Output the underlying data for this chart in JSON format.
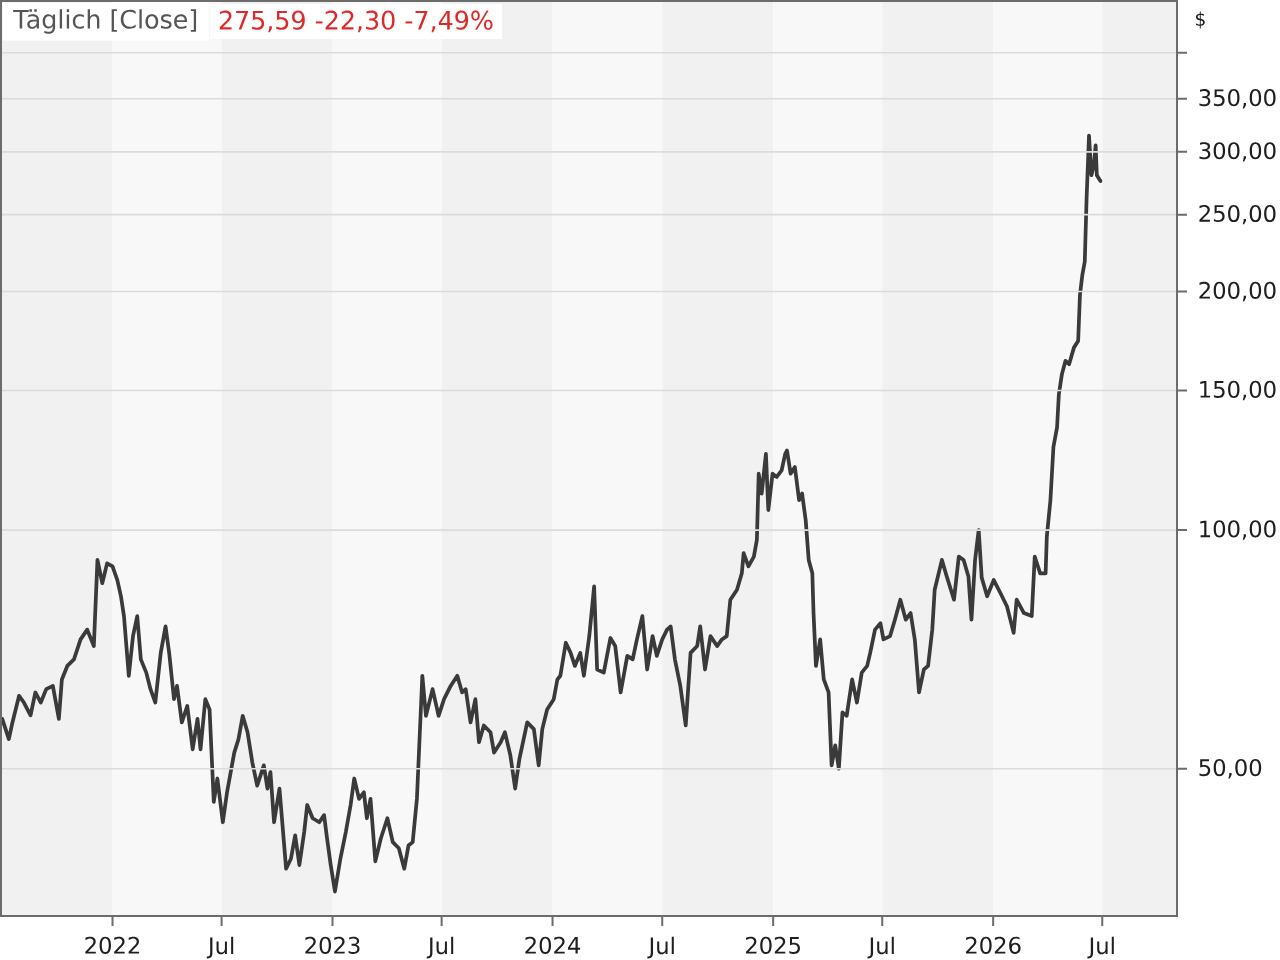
{
  "chart_data": {
    "type": "line",
    "title": "Täglich [Close]",
    "subtitle": "275,59 -22,30 -7,49%",
    "ylabel": "$",
    "x": [
      "2021-07-02",
      "2021-07-13",
      "2021-07-19",
      "2021-07-30",
      "2021-08-07",
      "2021-08-18",
      "2021-08-26",
      "2021-09-04",
      "2021-09-13",
      "2021-09-24",
      "2021-10-04",
      "2021-10-09",
      "2021-10-18",
      "2021-10-29",
      "2021-11-09",
      "2021-11-20",
      "2021-12-01",
      "2021-12-07",
      "2021-12-15",
      "2021-12-23",
      "2022-01-01",
      "2022-01-09",
      "2022-01-15",
      "2022-01-20",
      "2022-01-28",
      "2022-02-04",
      "2022-02-11",
      "2022-02-17",
      "2022-02-26",
      "2022-03-05",
      "2022-03-13",
      "2022-03-22",
      "2022-03-30",
      "2022-04-05",
      "2022-04-13",
      "2022-04-18",
      "2022-04-26",
      "2022-05-05",
      "2022-05-14",
      "2022-05-22",
      "2022-05-27",
      "2022-06-04",
      "2022-06-11",
      "2022-06-18",
      "2022-06-24",
      "2022-07-03",
      "2022-07-10",
      "2022-07-22",
      "2022-07-29",
      "2022-08-05",
      "2022-08-13",
      "2022-08-21",
      "2022-08-29",
      "2022-09-09",
      "2022-09-15",
      "2022-09-20",
      "2022-09-26",
      "2022-10-05",
      "2022-10-16",
      "2022-10-24",
      "2022-10-31",
      "2022-11-07",
      "2022-11-15",
      "2022-11-20",
      "2022-11-29",
      "2022-12-10",
      "2022-12-18",
      "2022-12-23",
      "2022-12-29",
      "2023-01-05",
      "2023-01-14",
      "2023-01-23",
      "2023-01-31",
      "2023-02-06",
      "2023-02-14",
      "2023-02-22",
      "2023-02-27",
      "2023-03-05",
      "2023-03-13",
      "2023-03-22",
      "2023-04-02",
      "2023-04-11",
      "2023-04-21",
      "2023-04-30",
      "2023-05-07",
      "2023-05-14",
      "2023-05-21",
      "2023-05-30",
      "2023-06-05",
      "2023-06-16",
      "2023-06-26",
      "2023-07-05",
      "2023-07-16",
      "2023-07-27",
      "2023-08-04",
      "2023-08-10",
      "2023-08-18",
      "2023-08-26",
      "2023-09-01",
      "2023-09-09",
      "2023-09-20",
      "2023-09-26",
      "2023-10-07",
      "2023-10-14",
      "2023-10-23",
      "2023-10-31",
      "2023-11-07",
      "2023-11-20",
      "2023-12-01",
      "2023-12-09",
      "2023-12-15",
      "2023-12-23",
      "2024-01-03",
      "2024-01-09",
      "2024-01-14",
      "2024-01-23",
      "2024-01-31",
      "2024-02-07",
      "2024-02-16",
      "2024-02-22",
      "2024-03-02",
      "2024-03-10",
      "2024-03-15",
      "2024-03-26",
      "2024-04-06",
      "2024-04-14",
      "2024-04-23",
      "2024-05-04",
      "2024-05-13",
      "2024-05-20",
      "2024-05-29",
      "2024-06-06",
      "2024-06-15",
      "2024-06-22",
      "2024-07-01",
      "2024-07-09",
      "2024-07-15",
      "2024-07-22",
      "2024-07-31",
      "2024-08-09",
      "2024-08-17",
      "2024-08-28",
      "2024-09-02",
      "2024-09-10",
      "2024-09-19",
      "2024-09-30",
      "2024-10-08",
      "2024-10-16",
      "2024-10-22",
      "2024-11-02",
      "2024-11-10",
      "2024-11-13",
      "2024-11-21",
      "2024-11-30",
      "2024-12-05",
      "2024-12-08",
      "2024-12-13",
      "2024-12-20",
      "2024-12-24",
      "2024-12-31",
      "2025-01-07",
      "2025-01-15",
      "2025-01-21",
      "2025-01-24",
      "2025-01-30",
      "2025-02-06",
      "2025-02-13",
      "2025-02-18",
      "2025-02-24",
      "2025-03-01",
      "2025-03-07",
      "2025-03-09",
      "2025-03-13",
      "2025-03-20",
      "2025-03-26",
      "2025-04-03",
      "2025-04-08",
      "2025-04-14",
      "2025-04-20",
      "2025-04-26",
      "2025-05-03",
      "2025-05-12",
      "2025-05-20",
      "2025-05-28",
      "2025-06-06",
      "2025-06-11",
      "2025-06-19",
      "2025-06-28",
      "2025-07-03",
      "2025-07-14",
      "2025-07-22",
      "2025-07-31",
      "2025-08-09",
      "2025-08-17",
      "2025-08-24",
      "2025-08-31",
      "2025-09-08",
      "2025-09-15",
      "2025-09-22",
      "2025-09-26",
      "2025-10-08",
      "2025-10-16",
      "2025-10-28",
      "2025-11-05",
      "2025-11-13",
      "2025-11-21",
      "2025-11-26",
      "2025-12-02",
      "2025-12-08",
      "2025-12-13",
      "2025-12-22",
      "2026-01-02",
      "2026-01-13",
      "2026-01-24",
      "2026-02-04",
      "2026-02-09",
      "2026-02-21",
      "2026-03-06",
      "2026-03-11",
      "2026-03-20",
      "2026-03-29",
      "2026-03-31",
      "2026-04-06",
      "2026-04-11",
      "2026-04-17",
      "2026-04-20",
      "2026-04-25",
      "2026-05-01",
      "2026-05-07",
      "2026-05-15",
      "2026-05-22",
      "2026-05-25",
      "2026-05-29",
      "2026-06-02",
      "2026-06-05",
      "2026-06-09",
      "2026-06-13",
      "2026-06-17",
      "2026-06-20",
      "2026-06-22",
      "2026-06-28"
    ],
    "values": [
      57.8,
      54.5,
      57.2,
      61.8,
      60.6,
      58.4,
      62.4,
      60.6,
      63.0,
      63.6,
      57.8,
      64.8,
      67.4,
      68.7,
      72.8,
      74.9,
      71.4,
      91.7,
      85.7,
      90.8,
      90.0,
      86.5,
      82.5,
      77.9,
      65.5,
      73.5,
      77.9,
      68.7,
      66.1,
      63.0,
      60.6,
      70.0,
      75.6,
      70.0,
      61.2,
      63.6,
      57.2,
      60.0,
      52.9,
      57.8,
      52.9,
      61.2,
      59.4,
      45.4,
      48.6,
      42.8,
      46.7,
      52.4,
      54.5,
      58.3,
      55.6,
      50.9,
      47.6,
      50.5,
      47.2,
      49.5,
      42.8,
      47.2,
      37.4,
      38.5,
      41.2,
      37.8,
      41.6,
      45.0,
      43.3,
      42.8,
      43.7,
      40.8,
      37.8,
      35.0,
      38.5,
      41.6,
      45.0,
      48.6,
      45.8,
      46.7,
      43.3,
      45.8,
      38.2,
      40.8,
      43.3,
      40.4,
      39.7,
      37.4,
      40.0,
      40.4,
      45.8,
      65.5,
      58.3,
      63.0,
      58.3,
      61.2,
      63.6,
      65.5,
      62.4,
      63.0,
      57.2,
      61.2,
      54.0,
      56.7,
      55.6,
      52.4,
      54.0,
      55.6,
      52.0,
      47.2,
      51.4,
      57.2,
      56.1,
      50.5,
      56.1,
      59.4,
      61.2,
      64.8,
      65.5,
      72.1,
      70.0,
      67.4,
      70.0,
      65.5,
      73.5,
      84.9,
      66.7,
      66.1,
      73.1,
      71.4,
      62.4,
      69.4,
      68.7,
      72.8,
      77.9,
      66.7,
      73.5,
      69.4,
      72.8,
      74.9,
      75.6,
      68.7,
      63.6,
      56.7,
      70.0,
      71.4,
      75.6,
      66.7,
      73.5,
      71.4,
      72.8,
      73.5,
      81.7,
      84.1,
      88.2,
      93.5,
      90.0,
      92.6,
      97.2,
      117.8,
      111.2,
      124.8,
      106.0,
      117.8,
      116.7,
      118.9,
      124.8,
      126.0,
      117.8,
      120.1,
      109.1,
      111.2,
      102.9,
      91.7,
      88.2,
      78.6,
      67.4,
      72.8,
      64.8,
      62.4,
      50.5,
      53.5,
      50.0,
      58.9,
      58.3,
      64.8,
      60.6,
      66.1,
      67.4,
      70.0,
      74.9,
      76.3,
      72.8,
      73.5,
      77.1,
      81.7,
      77.1,
      78.6,
      72.8,
      62.4,
      66.7,
      67.4,
      74.9,
      84.1,
      91.7,
      87.4,
      81.7,
      92.6,
      91.7,
      87.4,
      77.1,
      91.7,
      100.0,
      87.1,
      82.5,
      86.5,
      83.3,
      80.1,
      74.2,
      81.7,
      78.6,
      77.9,
      92.6,
      88.2,
      88.2,
      98.1,
      109.1,
      127.3,
      134.8,
      148.4,
      157.2,
      163.5,
      161.9,
      169.9,
      173.2,
      198.1,
      209.9,
      218.2,
      262.1,
      314.6,
      280.3,
      288.5,
      305.7,
      280.3,
      275.6
    ],
    "color": "#3a3a3a",
    "xlim": [
      "2021-06-30",
      "2026-11-02"
    ],
    "xticks": [
      {
        "value": "2022-01-01",
        "label": "2022"
      },
      {
        "value": "2022-07-01",
        "label": "Jul"
      },
      {
        "value": "2023-01-01",
        "label": "2023"
      },
      {
        "value": "2023-07-01",
        "label": "Jul"
      },
      {
        "value": "2024-01-01",
        "label": "2024"
      },
      {
        "value": "2024-07-01",
        "label": "Jul"
      },
      {
        "value": "2025-01-01",
        "label": "2025"
      },
      {
        "value": "2025-07-01",
        "label": "Jul"
      },
      {
        "value": "2026-01-01",
        "label": "2026"
      },
      {
        "value": "2026-07-01",
        "label": "Jul"
      }
    ],
    "ylim": [
      32.6,
      465
    ],
    "yticks": [
      {
        "value": 50,
        "label": "50,00"
      },
      {
        "value": 100,
        "label": "100,00"
      },
      {
        "value": 150,
        "label": "150,00"
      },
      {
        "value": 200,
        "label": "200,00"
      },
      {
        "value": 250,
        "label": "250,00"
      },
      {
        "value": 300,
        "label": "300,00"
      },
      {
        "value": 350,
        "label": "350,00"
      },
      {
        "value": 400,
        "label": null
      }
    ],
    "log": true,
    "grid": "y",
    "bands": [
      {
        "axis": "x",
        "from": "2021-06-30",
        "to": "2022-01-01",
        "color": "#f1f1f1"
      },
      {
        "axis": "x",
        "from": "2022-01-01",
        "to": "2022-07-01",
        "color": "#f8f8f8"
      },
      {
        "axis": "x",
        "from": "2022-07-01",
        "to": "2023-01-01",
        "color": "#f1f1f1"
      },
      {
        "axis": "x",
        "from": "2023-01-01",
        "to": "2023-07-01",
        "color": "#f8f8f8"
      },
      {
        "axis": "x",
        "from": "2023-07-01",
        "to": "2024-01-01",
        "color": "#f1f1f1"
      },
      {
        "axis": "x",
        "from": "2024-01-01",
        "to": "2024-07-01",
        "color": "#f8f8f8"
      },
      {
        "axis": "x",
        "from": "2024-07-01",
        "to": "2025-01-01",
        "color": "#f1f1f1"
      },
      {
        "axis": "x",
        "from": "2025-01-01",
        "to": "2025-07-01",
        "color": "#f8f8f8"
      },
      {
        "axis": "x",
        "from": "2025-07-01",
        "to": "2026-01-01",
        "color": "#f1f1f1"
      },
      {
        "axis": "x",
        "from": "2026-01-01",
        "to": "2026-07-01",
        "color": "#f8f8f8"
      },
      {
        "axis": "x",
        "from": "2026-07-01",
        "to": "2026-11-02",
        "color": "#f1f1f1"
      }
    ]
  }
}
